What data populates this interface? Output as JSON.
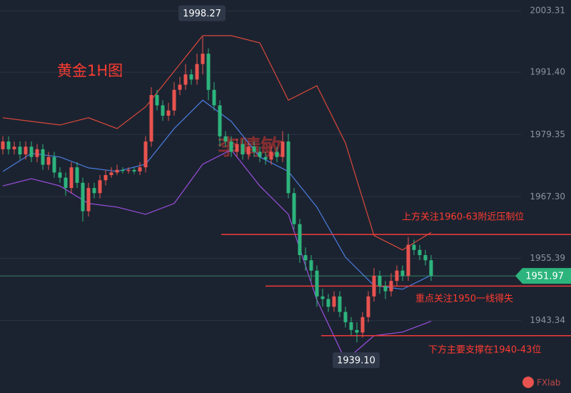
{
  "chart_data": {
    "type": "candlestick",
    "title": "黄金1H图",
    "watermark": "李晴敏",
    "logo": "FXlab",
    "up_color": "#e8534f",
    "down_color": "#2db47d",
    "ylim": [
      1929.3,
      2005.4
    ],
    "yticks": [
      2003.31,
      {
        "value": 1991.4,
        "label": "1991.40"
      },
      1979.35,
      {
        "value": 1967.3,
        "label": "1967.30"
      },
      1955.39,
      1943.34
    ],
    "grid": true,
    "candles": {
      "open": [
        1976.5,
        1978,
        1976.5,
        1977,
        1975.5,
        1977,
        1975,
        1976.5,
        1973.5,
        1975,
        1972,
        1971,
        1969,
        1973,
        1970,
        1964.5,
        1969,
        1968,
        1970.5,
        1971.5,
        1972,
        1972.5,
        1972.3,
        1972.5,
        1972.2,
        1973,
        1978,
        1987,
        1985,
        1983,
        1984,
        1988,
        1989,
        1991,
        1990,
        1993,
        1995,
        1988,
        1985,
        1979,
        1978,
        1976,
        1977.5,
        1975.5,
        1977,
        1976,
        1975,
        1974.5,
        1976,
        1975,
        1978,
        1968,
        1962,
        1956,
        1955,
        1953,
        1948,
        1947.5,
        1946,
        1948,
        1945,
        1943,
        1941.5,
        1941,
        1944,
        1948,
        1952,
        1950,
        1949,
        1951,
        1953,
        1952,
        1958,
        1957,
        1956,
        1955
      ],
      "high": [
        1979,
        1979,
        1978,
        1978,
        1978,
        1978,
        1977.5,
        1977.5,
        1976,
        1976,
        1973,
        1972,
        1974,
        1974,
        1971,
        1970,
        1970,
        1971.5,
        1972.5,
        1973,
        1973.5,
        1973,
        1973,
        1973,
        1974,
        1979,
        1988.5,
        1988,
        1986,
        1985.5,
        1989.5,
        1990.5,
        1993,
        1992,
        1995,
        1998.27,
        1996,
        1989.5,
        1986,
        1980,
        1979,
        1978.5,
        1978.5,
        1978,
        1978,
        1977,
        1976,
        1977,
        1977,
        1980,
        1979.5,
        1969,
        1963,
        1957.5,
        1956,
        1954,
        1949.5,
        1948.5,
        1949,
        1949,
        1946,
        1944,
        1943,
        1945,
        1949,
        1953.5,
        1953,
        1951,
        1952.5,
        1954,
        1954,
        1959.5,
        1959,
        1958,
        1957,
        1956
      ],
      "low": [
        1975.5,
        1975.5,
        1975.5,
        1974.5,
        1974.5,
        1974,
        1974,
        1972.5,
        1972.5,
        1971,
        1970,
        1967.5,
        1968,
        1969,
        1962.5,
        1963.5,
        1967,
        1967,
        1969.5,
        1971,
        1971.5,
        1971.8,
        1971.8,
        1971.7,
        1971.5,
        1972,
        1977,
        1984,
        1982,
        1982,
        1983,
        1987,
        1988,
        1989,
        1989,
        1991,
        1986,
        1984,
        1977,
        1977,
        1975,
        1975,
        1974.5,
        1974.5,
        1975,
        1974,
        1973.5,
        1973.5,
        1974,
        1974,
        1967,
        1961,
        1954.5,
        1953,
        1951,
        1946,
        1946,
        1945,
        1945,
        1944,
        1942,
        1940.5,
        1939.1,
        1940,
        1943,
        1947,
        1948.5,
        1947.5,
        1948,
        1950,
        1951,
        1951,
        1956,
        1955,
        1954,
        1951
      ],
      "close": [
        1978,
        1976.5,
        1977,
        1975.5,
        1977,
        1975,
        1976.5,
        1973.5,
        1975,
        1972,
        1971,
        1969,
        1973,
        1970,
        1964.5,
        1969,
        1968,
        1970.5,
        1971.5,
        1972,
        1972.5,
        1972.3,
        1972.5,
        1972.2,
        1973,
        1978,
        1987,
        1985,
        1983,
        1984,
        1988,
        1989,
        1991,
        1990,
        1993,
        1995,
        1988,
        1985,
        1979,
        1978,
        1976,
        1977.5,
        1975.5,
        1977,
        1976,
        1975,
        1974.5,
        1976,
        1975,
        1978,
        1968,
        1962,
        1956,
        1955,
        1953,
        1948,
        1947.5,
        1946,
        1948,
        1945,
        1943,
        1941.5,
        1941,
        1944,
        1948,
        1952,
        1950,
        1949,
        1951,
        1953,
        1952,
        1958,
        1957,
        1956,
        1955,
        1951.97
      ]
    },
    "band_x": [
      0,
      5,
      10,
      15,
      20,
      25,
      30,
      35,
      40,
      45,
      50,
      55,
      60,
      65,
      70,
      75
    ],
    "bands": [
      {
        "color": "#d9483b",
        "values": [
          1982.6,
          1981.9,
          1981.2,
          1982.6,
          1980.5,
          1984.7,
          1991.6,
          1998.5,
          1998.5,
          1997.1,
          1986.0,
          1988.8,
          1977.7,
          1959.8,
          1957.0,
          1960.4
        ]
      },
      {
        "color": "#4a7de0",
        "values": [
          1972.2,
          1975.7,
          1975.0,
          1972.9,
          1972.2,
          1973.6,
          1980.5,
          1986.0,
          1981.9,
          1975.0,
          1972.2,
          1965.3,
          1955.6,
          1950.1,
          1949.4,
          1952.1
        ]
      },
      {
        "color": "#9b4fe0",
        "values": [
          1969.4,
          1970.8,
          1969.4,
          1966.0,
          1965.3,
          1963.9,
          1966.0,
          1973.6,
          1976.4,
          1969.4,
          1963.9,
          1947.3,
          1935.6,
          1940.4,
          1941.1,
          1943.2
        ]
      }
    ],
    "extremes": [
      {
        "value": 1998.27,
        "label": "1998.27"
      },
      {
        "value": 1939.1,
        "label": "1939.10"
      }
    ],
    "extreme_index": [
      35,
      62
    ],
    "last_price": 1951.97,
    "levels": [
      {
        "value": 1960,
        "label": "上方关注1960-63附近压制位"
      },
      {
        "value": 1950,
        "label": "重点关注1950一线得失"
      },
      {
        "value": 1940.4,
        "label": "下方主要支撑在1940-43位"
      }
    ]
  }
}
